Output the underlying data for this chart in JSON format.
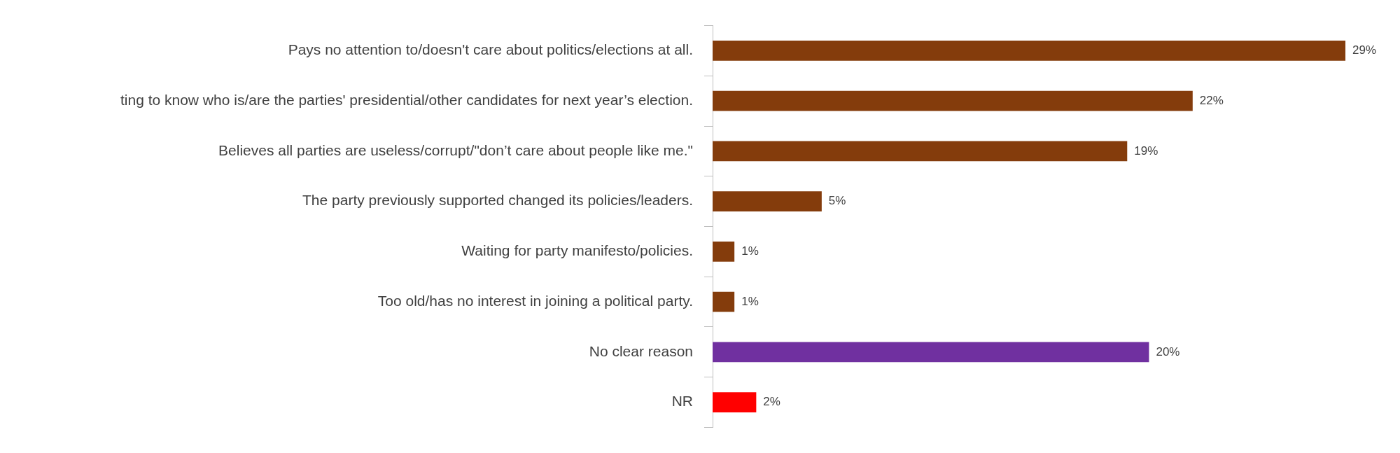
{
  "chart_data": {
    "type": "bar",
    "orientation": "horizontal",
    "categories": [
      "Pays no attention to/doesn't care about politics/elections at all.",
      "ting to know who is/are the parties' presidential/other candidates for next year’s election.",
      "Believes all parties are useless/corrupt/\"don’t care about people like me.\"",
      "The party previously supported changed its policies/leaders.",
      "Waiting for party manifesto/policies.",
      "Too old/has no interest in joining a political party.",
      "No clear reason",
      "NR"
    ],
    "values": [
      29,
      22,
      19,
      5,
      1,
      1,
      20,
      2
    ],
    "colors": [
      "#843c0c",
      "#843c0c",
      "#843c0c",
      "#843c0c",
      "#843c0c",
      "#843c0c",
      "#7030a0",
      "#ff0000"
    ],
    "value_labels": [
      "29%",
      "22%",
      "19%",
      "5%",
      "1%",
      "1%",
      "20%",
      "2%"
    ],
    "tick_labels": "y",
    "grid": false,
    "legend": false
  }
}
